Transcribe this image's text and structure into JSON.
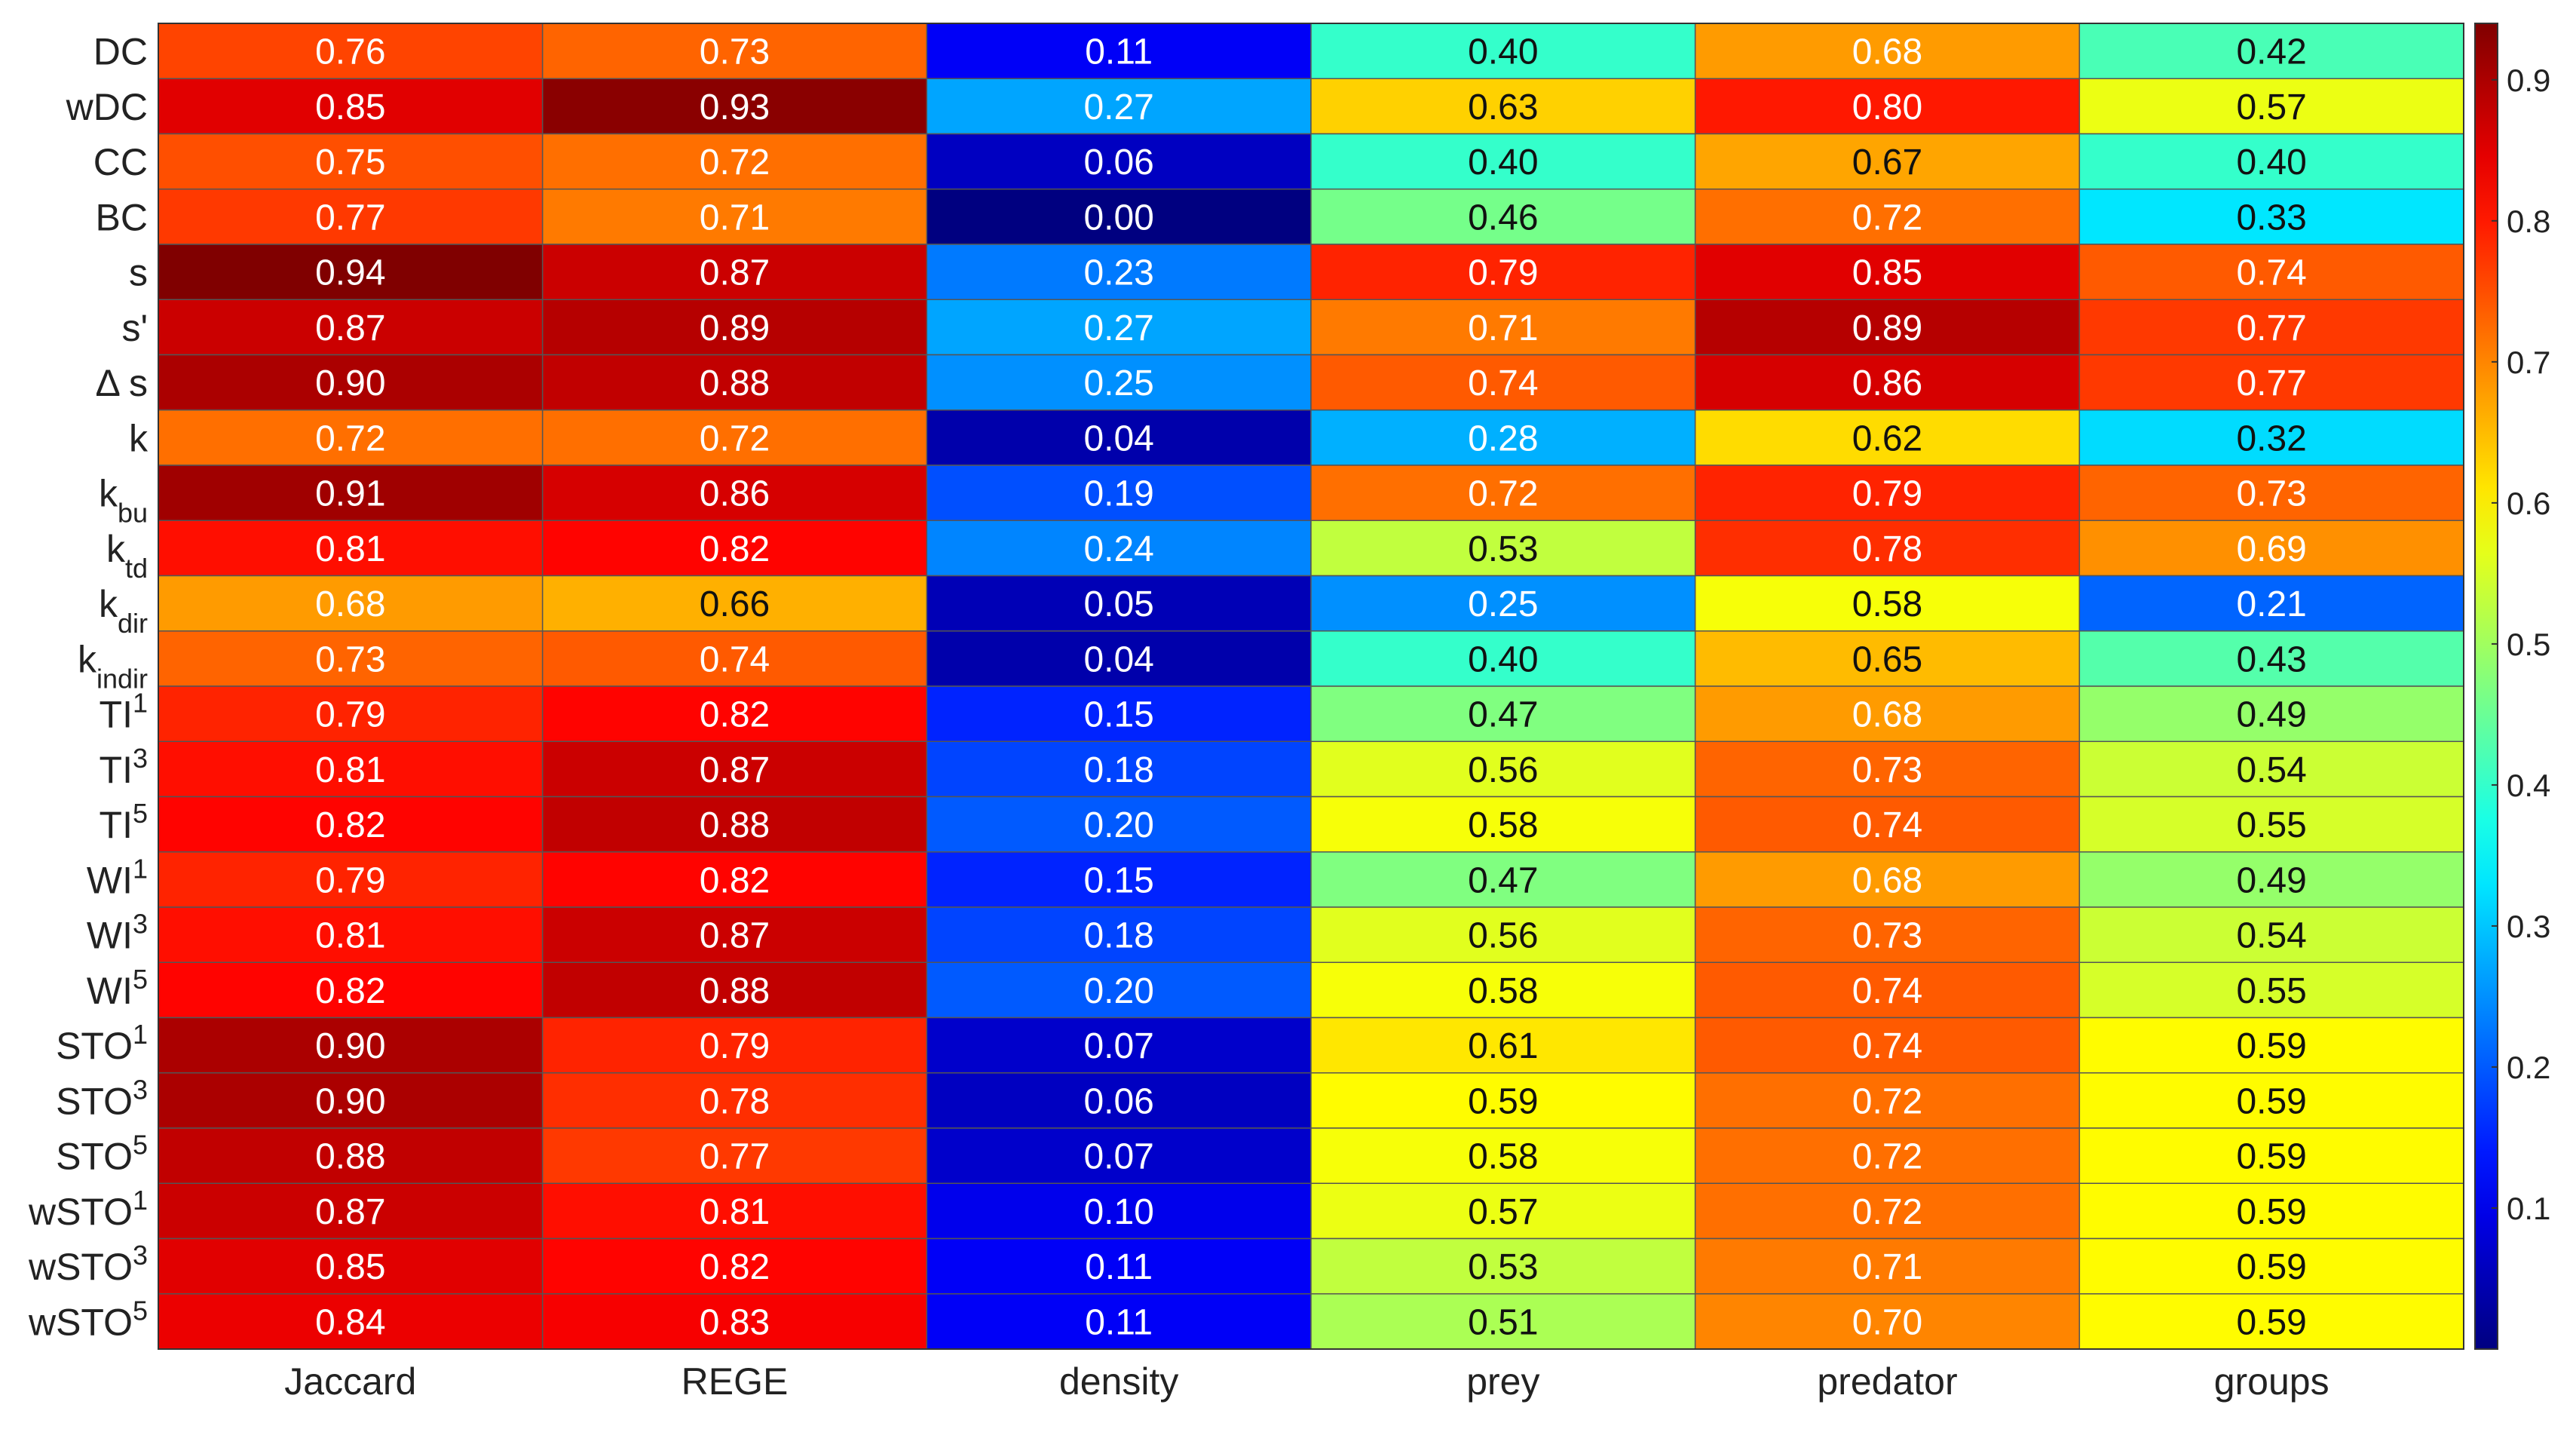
{
  "chart_data": {
    "type": "heatmap",
    "colormap": "jet",
    "colorbar_range": [
      0.0,
      0.94
    ],
    "colorbar_ticks": [
      0.1,
      0.2,
      0.3,
      0.4,
      0.5,
      0.6,
      0.7,
      0.8,
      0.9
    ],
    "columns": [
      "Jaccard",
      "REGE",
      "density",
      "prey",
      "predator",
      "groups"
    ],
    "rows": [
      {
        "label": "DC",
        "sup": "",
        "sub": ""
      },
      {
        "label": "wDC",
        "sup": "",
        "sub": ""
      },
      {
        "label": "CC",
        "sup": "",
        "sub": ""
      },
      {
        "label": "BC",
        "sup": "",
        "sub": ""
      },
      {
        "label": "s",
        "sup": "",
        "sub": ""
      },
      {
        "label": "s'",
        "sup": "",
        "sub": ""
      },
      {
        "label": "Δ s",
        "sup": "",
        "sub": ""
      },
      {
        "label": "k",
        "sup": "",
        "sub": ""
      },
      {
        "label": "k",
        "sup": "",
        "sub": "bu"
      },
      {
        "label": "k",
        "sup": "",
        "sub": "td"
      },
      {
        "label": "k",
        "sup": "",
        "sub": "dir"
      },
      {
        "label": "k",
        "sup": "",
        "sub": "indir"
      },
      {
        "label": "TI",
        "sup": "1",
        "sub": ""
      },
      {
        "label": "TI",
        "sup": "3",
        "sub": ""
      },
      {
        "label": "TI",
        "sup": "5",
        "sub": ""
      },
      {
        "label": "WI",
        "sup": "1",
        "sub": ""
      },
      {
        "label": "WI",
        "sup": "3",
        "sub": ""
      },
      {
        "label": "WI",
        "sup": "5",
        "sub": ""
      },
      {
        "label": "STO",
        "sup": "1",
        "sub": ""
      },
      {
        "label": "STO",
        "sup": "3",
        "sub": ""
      },
      {
        "label": "STO",
        "sup": "5",
        "sub": ""
      },
      {
        "label": "wSTO",
        "sup": "1",
        "sub": ""
      },
      {
        "label": "wSTO",
        "sup": "3",
        "sub": ""
      },
      {
        "label": "wSTO",
        "sup": "5",
        "sub": ""
      }
    ],
    "values": [
      [
        0.76,
        0.73,
        0.11,
        0.4,
        0.68,
        0.42
      ],
      [
        0.85,
        0.93,
        0.27,
        0.63,
        0.8,
        0.57
      ],
      [
        0.75,
        0.72,
        0.06,
        0.4,
        0.67,
        0.4
      ],
      [
        0.77,
        0.71,
        0.0,
        0.46,
        0.72,
        0.33
      ],
      [
        0.94,
        0.87,
        0.23,
        0.79,
        0.85,
        0.74
      ],
      [
        0.87,
        0.89,
        0.27,
        0.71,
        0.89,
        0.77
      ],
      [
        0.9,
        0.88,
        0.25,
        0.74,
        0.86,
        0.77
      ],
      [
        0.72,
        0.72,
        0.04,
        0.28,
        0.62,
        0.32
      ],
      [
        0.91,
        0.86,
        0.19,
        0.72,
        0.79,
        0.73
      ],
      [
        0.81,
        0.82,
        0.24,
        0.53,
        0.78,
        0.69
      ],
      [
        0.68,
        0.66,
        0.05,
        0.25,
        0.58,
        0.21
      ],
      [
        0.73,
        0.74,
        0.04,
        0.4,
        0.65,
        0.43
      ],
      [
        0.79,
        0.82,
        0.15,
        0.47,
        0.68,
        0.49
      ],
      [
        0.81,
        0.87,
        0.18,
        0.56,
        0.73,
        0.54
      ],
      [
        0.82,
        0.88,
        0.2,
        0.58,
        0.74,
        0.55
      ],
      [
        0.79,
        0.82,
        0.15,
        0.47,
        0.68,
        0.49
      ],
      [
        0.81,
        0.87,
        0.18,
        0.56,
        0.73,
        0.54
      ],
      [
        0.82,
        0.88,
        0.2,
        0.58,
        0.74,
        0.55
      ],
      [
        0.9,
        0.79,
        0.07,
        0.61,
        0.74,
        0.59
      ],
      [
        0.9,
        0.78,
        0.06,
        0.59,
        0.72,
        0.59
      ],
      [
        0.88,
        0.77,
        0.07,
        0.58,
        0.72,
        0.59
      ],
      [
        0.87,
        0.81,
        0.1,
        0.57,
        0.72,
        0.59
      ],
      [
        0.85,
        0.82,
        0.11,
        0.53,
        0.71,
        0.59
      ],
      [
        0.84,
        0.83,
        0.11,
        0.51,
        0.7,
        0.59
      ]
    ]
  }
}
